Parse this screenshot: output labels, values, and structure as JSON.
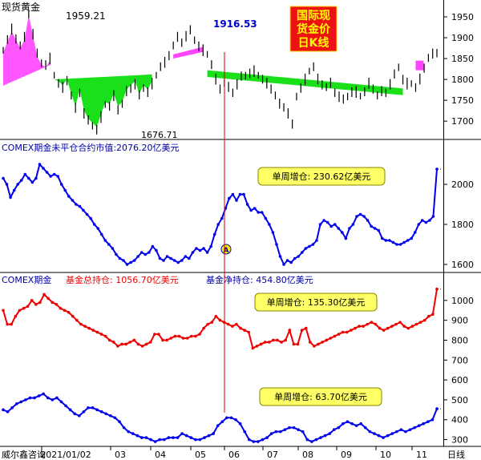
{
  "colors": {
    "price_up": "#ff44ff",
    "price_down": "#00dd00",
    "bar": "#000000",
    "position_line": "#0000ee",
    "holding_line": "#ee0000",
    "net_line": "#0000ee",
    "vline": "#dd0000",
    "bubble_fill": "#ffff66",
    "stamp_bg": "#ee1111",
    "stamp_text": "#ffff00",
    "axis": "#000000"
  },
  "panel1": {
    "title": "现货黄金",
    "stamp": [
      "国际现",
      "货金价",
      "日K线"
    ],
    "peak_label": "1959.21",
    "mid_peak_label": "1916.53",
    "low_label": "1676.71",
    "yticks": [
      "1950",
      "1900",
      "1850",
      "1800",
      "1750",
      "1700"
    ]
  },
  "panel2": {
    "title": "COMEX期金未平仓合约市值:2076.20亿美元",
    "bubble": "单周增仓: 230.62亿美元",
    "marker": "A",
    "yticks": [
      "2000",
      "1800",
      "1600"
    ]
  },
  "panel3": {
    "title_prefix": "COMEX期金",
    "title_holding": "基金总持仓: 1056.70亿美元",
    "title_net": "基金净持仓: 454.80亿美元",
    "bubble_holding": "单周增仓: 135.30亿美元",
    "bubble_net": "单周增仓: 63.70亿美元",
    "yticks": [
      "1000",
      "900",
      "800",
      "700",
      "600",
      "500",
      "400",
      "300"
    ]
  },
  "footer": {
    "source": "威尔鑫咨询",
    "xlabels": [
      "2021/01/02",
      "03",
      "04",
      "05",
      "06",
      "07",
      "08",
      "09",
      "10",
      "11"
    ],
    "period": "日线"
  },
  "chart_data": [
    {
      "type": "line",
      "title": "现货黄金",
      "ylim": [
        1660,
        1975
      ],
      "annotations": [
        {
          "text": "1959.21",
          "value": 1959.21
        },
        {
          "text": "1916.53",
          "value": 1916.53
        },
        {
          "text": "1676.71",
          "value": 1676.71
        }
      ],
      "series": [
        {
          "values": [
            1870,
            1895,
            1920,
            1900,
            1880,
            1900,
            1959,
            1910,
            1860,
            1840,
            1835,
            1850,
            1810,
            1790,
            1780,
            1800,
            1760,
            1730,
            1770,
            1720,
            1700,
            1690,
            1680,
            1710,
            1740,
            1735,
            1760,
            1730,
            1740,
            1770,
            1780,
            1790,
            1760,
            1780,
            1770,
            1790,
            1810,
            1830,
            1840,
            1860,
            1880,
            1900,
            1890,
            1905,
            1916,
            1895,
            1880,
            1870,
            1860,
            1835,
            1800,
            1780,
            1790,
            1780,
            1770,
            1790,
            1805,
            1810,
            1815,
            1820,
            1810,
            1800,
            1790,
            1780,
            1760,
            1740,
            1735,
            1720,
            1690,
            1760,
            1780,
            1800,
            1820,
            1830,
            1800,
            1790,
            1780,
            1790,
            1770,
            1760,
            1750,
            1760,
            1770,
            1770,
            1760,
            1770,
            1790,
            1780,
            1760,
            1770,
            1770,
            1790,
            1810,
            1830,
            1800,
            1790,
            1790,
            1780,
            1800,
            1830,
            1850,
            1860,
            1865
          ]
        }
      ]
    },
    {
      "type": "line",
      "title": "COMEX期金未平仓合约市值:2076.20亿美元",
      "ylim": [
        1560,
        2180
      ],
      "series": [
        {
          "values": [
            2030,
            2000,
            1935,
            1970,
            2000,
            2020,
            2050,
            2030,
            2010,
            2030,
            2100,
            2080,
            2060,
            2040,
            2050,
            2040,
            2000,
            1970,
            1940,
            1920,
            1900,
            1890,
            1870,
            1850,
            1830,
            1800,
            1780,
            1750,
            1720,
            1700,
            1680,
            1650,
            1630,
            1620,
            1600,
            1610,
            1620,
            1640,
            1660,
            1650,
            1660,
            1690,
            1670,
            1630,
            1620,
            1640,
            1630,
            1620,
            1610,
            1620,
            1640,
            1630,
            1660,
            1680,
            1670,
            1680,
            1660,
            1690,
            1750,
            1800,
            1830,
            1880,
            1930,
            1950,
            1920,
            1950,
            1950,
            1900,
            1870,
            1880,
            1860,
            1860,
            1830,
            1800,
            1760,
            1700,
            1640,
            1600,
            1620,
            1610,
            1630,
            1640,
            1660,
            1680,
            1690,
            1700,
            1720,
            1800,
            1820,
            1810,
            1790,
            1800,
            1780,
            1760,
            1730,
            1780,
            1800,
            1840,
            1850,
            1840,
            1820,
            1790,
            1780,
            1770,
            1730,
            1720,
            1720,
            1710,
            1700,
            1700,
            1710,
            1720,
            1730,
            1760,
            1800,
            1820,
            1810,
            1820,
            1840,
            2076
          ]
        }
      ]
    },
    {
      "type": "line",
      "title": "COMEX期金",
      "ylim": [
        270,
        1080
      ],
      "series": [
        {
          "name": "基金总持仓",
          "values": [
            950,
            880,
            880,
            920,
            950,
            960,
            970,
            1000,
            980,
            990,
            1030,
            1010,
            990,
            980,
            960,
            950,
            940,
            920,
            900,
            880,
            870,
            860,
            850,
            840,
            830,
            820,
            800,
            790,
            770,
            780,
            780,
            790,
            800,
            780,
            770,
            780,
            790,
            830,
            830,
            800,
            800,
            810,
            820,
            820,
            810,
            810,
            820,
            820,
            830,
            860,
            880,
            890,
            920,
            900,
            890,
            880,
            870,
            880,
            860,
            850,
            840,
            760,
            770,
            780,
            790,
            790,
            800,
            800,
            790,
            800,
            850,
            780,
            780,
            850,
            860,
            790,
            770,
            780,
            790,
            800,
            810,
            820,
            830,
            840,
            840,
            850,
            860,
            870,
            870,
            880,
            890,
            880,
            860,
            850,
            860,
            870,
            880,
            890,
            870,
            860,
            870,
            880,
            890,
            900,
            920,
            930,
            1057
          ]
        },
        {
          "name": "基金净持仓",
          "values": [
            450,
            440,
            460,
            480,
            490,
            500,
            510,
            510,
            520,
            530,
            510,
            500,
            510,
            490,
            470,
            450,
            430,
            420,
            440,
            460,
            460,
            450,
            440,
            430,
            420,
            410,
            390,
            360,
            340,
            330,
            320,
            310,
            310,
            300,
            290,
            300,
            300,
            310,
            310,
            310,
            330,
            320,
            310,
            300,
            300,
            310,
            320,
            330,
            370,
            390,
            410,
            410,
            400,
            380,
            340,
            300,
            290,
            290,
            300,
            310,
            330,
            340,
            340,
            350,
            360,
            360,
            350,
            340,
            300,
            290,
            300,
            310,
            320,
            330,
            350,
            360,
            380,
            390,
            380,
            370,
            380,
            360,
            340,
            330,
            320,
            310,
            320,
            330,
            340,
            350,
            340,
            350,
            360,
            370,
            380,
            390,
            400,
            455
          ]
        }
      ]
    }
  ]
}
